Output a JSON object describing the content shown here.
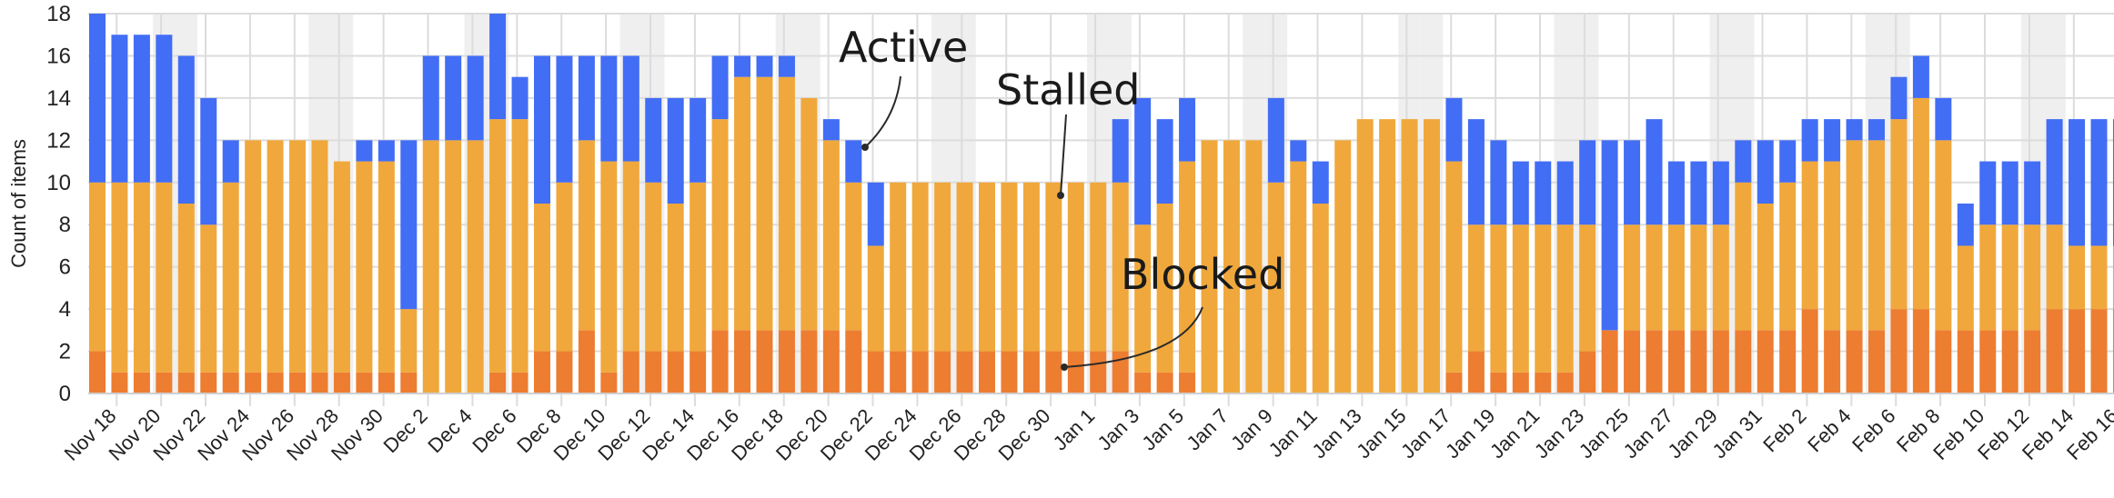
{
  "chart_data": {
    "type": "bar",
    "stacked": true,
    "title": "",
    "xlabel": "",
    "ylabel": "Count of items",
    "ylim": [
      0,
      18
    ],
    "yticks": [
      0,
      2,
      4,
      6,
      8,
      10,
      12,
      14,
      16,
      18
    ],
    "grid": true,
    "legend": "none (inline annotations)",
    "colors": {
      "Blocked": "#ED7D31",
      "Stalled": "#F0A83C",
      "Active": "#426DF5"
    },
    "categories": [
      "Nov 18",
      "Nov 19",
      "Nov 20",
      "Nov 21",
      "Nov 22",
      "Nov 23",
      "Nov 24",
      "Nov 25",
      "Nov 26",
      "Nov 27",
      "Nov 28",
      "Nov 29",
      "Nov 30",
      "Dec 1",
      "Dec 2",
      "Dec 3",
      "Dec 4",
      "Dec 5",
      "Dec 6",
      "Dec 7",
      "Dec 8",
      "Dec 9",
      "Dec 10",
      "Dec 11",
      "Dec 12",
      "Dec 13",
      "Dec 14",
      "Dec 15",
      "Dec 16",
      "Dec 17",
      "Dec 18",
      "Dec 19",
      "Dec 20",
      "Dec 21",
      "Dec 22",
      "Dec 23",
      "Dec 24",
      "Dec 25",
      "Dec 26",
      "Dec 27",
      "Dec 28",
      "Dec 29",
      "Dec 30",
      "Dec 31",
      "Jan 1",
      "Jan 2",
      "Jan 3",
      "Jan 4",
      "Jan 5",
      "Jan 6",
      "Jan 7",
      "Jan 8",
      "Jan 9",
      "Jan 10",
      "Jan 11",
      "Jan 12",
      "Jan 13",
      "Jan 14",
      "Jan 15",
      "Jan 16",
      "Jan 17",
      "Jan 18",
      "Jan 19",
      "Jan 20",
      "Jan 21",
      "Jan 22",
      "Jan 23",
      "Jan 24",
      "Jan 25",
      "Jan 26",
      "Jan 27",
      "Jan 28",
      "Jan 29",
      "Jan 30",
      "Jan 31",
      "Feb 1",
      "Feb 2",
      "Feb 3",
      "Feb 4",
      "Feb 5",
      "Feb 6",
      "Feb 7",
      "Feb 8",
      "Feb 9",
      "Feb 10",
      "Feb 11",
      "Feb 12",
      "Feb 13",
      "Feb 14",
      "Feb 15",
      "Feb 16",
      "Feb 17"
    ],
    "tick_labels": [
      "Nov 18",
      "Nov 20",
      "Nov 22",
      "Nov 24",
      "Nov 26",
      "Nov 28",
      "Nov 30",
      "Dec 2",
      "Dec 4",
      "Dec 6",
      "Dec 8",
      "Dec 10",
      "Dec 12",
      "Dec 14",
      "Dec 16",
      "Dec 18",
      "Dec 20",
      "Dec 22",
      "Dec 24",
      "Dec 26",
      "Dec 28",
      "Dec 30",
      "Jan 1",
      "Jan 3",
      "Jan 5",
      "Jan 7",
      "Jan 9",
      "Jan 11",
      "Jan 13",
      "Jan 15",
      "Jan 17",
      "Jan 19",
      "Jan 21",
      "Jan 23",
      "Jan 25",
      "Jan 27",
      "Jan 29",
      "Jan 31",
      "Feb 2",
      "Feb 4",
      "Feb 6",
      "Feb 8",
      "Feb 10",
      "Feb 12",
      "Feb 14",
      "Feb 16"
    ],
    "series": [
      {
        "name": "Blocked",
        "values": [
          2,
          1,
          1,
          1,
          1,
          1,
          1,
          1,
          1,
          1,
          1,
          1,
          1,
          1,
          1,
          0,
          0,
          0,
          1,
          1,
          2,
          2,
          3,
          1,
          2,
          2,
          2,
          2,
          3,
          3,
          3,
          3,
          3,
          3,
          3,
          2,
          2,
          2,
          2,
          2,
          2,
          2,
          2,
          2,
          2,
          2,
          2,
          1,
          1,
          1,
          0,
          0,
          0,
          0,
          0,
          0,
          0,
          0,
          0,
          0,
          0,
          1,
          2,
          1,
          1,
          1,
          1,
          2,
          3,
          3,
          3,
          3,
          3,
          3,
          3,
          3,
          3,
          4,
          3,
          3,
          3,
          4,
          4,
          3,
          3,
          3,
          3,
          3,
          4,
          4,
          4,
          4
        ]
      },
      {
        "name": "Stalled",
        "values": [
          8,
          9,
          9,
          9,
          8,
          7,
          9,
          11,
          11,
          11,
          11,
          10,
          10,
          10,
          3,
          12,
          12,
          12,
          12,
          12,
          7,
          8,
          9,
          10,
          9,
          8,
          7,
          8,
          10,
          12,
          12,
          12,
          11,
          9,
          7,
          5,
          8,
          8,
          8,
          8,
          8,
          8,
          8,
          8,
          8,
          8,
          8,
          7,
          8,
          10,
          12,
          12,
          12,
          10,
          11,
          9,
          12,
          13,
          13,
          13,
          13,
          10,
          6,
          7,
          7,
          7,
          7,
          6,
          0,
          5,
          5,
          5,
          5,
          5,
          7,
          6,
          7,
          7,
          8,
          9,
          9,
          9,
          10,
          9,
          4,
          5,
          5,
          5,
          4,
          3,
          3,
          3
        ]
      },
      {
        "name": "Active",
        "values": [
          8,
          7,
          7,
          7,
          7,
          6,
          2,
          0,
          0,
          0,
          0,
          0,
          1,
          1,
          8,
          4,
          4,
          4,
          5,
          2,
          7,
          6,
          4,
          5,
          5,
          4,
          5,
          4,
          3,
          1,
          1,
          1,
          0,
          1,
          2,
          3,
          0,
          0,
          0,
          0,
          0,
          0,
          0,
          0,
          0,
          0,
          3,
          6,
          4,
          3,
          0,
          0,
          0,
          4,
          1,
          2,
          0,
          0,
          0,
          0,
          0,
          3,
          5,
          4,
          3,
          3,
          3,
          4,
          9,
          4,
          5,
          3,
          3,
          3,
          2,
          3,
          2,
          2,
          2,
          1,
          1,
          2,
          2,
          2,
          2,
          3,
          3,
          3,
          5,
          6,
          6,
          6
        ]
      }
    ],
    "annotations": [
      {
        "text": "Active",
        "points_to": "Dec 23"
      },
      {
        "text": "Stalled",
        "points_to": "Dec 31"
      },
      {
        "text": "Blocked",
        "points_to": "Jan 1"
      }
    ],
    "weekend_shading": [
      "Nov 21",
      "Nov 22",
      "Nov 28",
      "Nov 29",
      "Dec 5",
      "Dec 6",
      "Dec 12",
      "Dec 13",
      "Dec 19",
      "Dec 20",
      "Dec 26",
      "Dec 27",
      "Jan 2",
      "Jan 3",
      "Jan 9",
      "Jan 10",
      "Jan 16",
      "Jan 17",
      "Jan 23",
      "Jan 24",
      "Jan 30",
      "Jan 31",
      "Feb 6",
      "Feb 7",
      "Feb 13",
      "Feb 14"
    ]
  }
}
